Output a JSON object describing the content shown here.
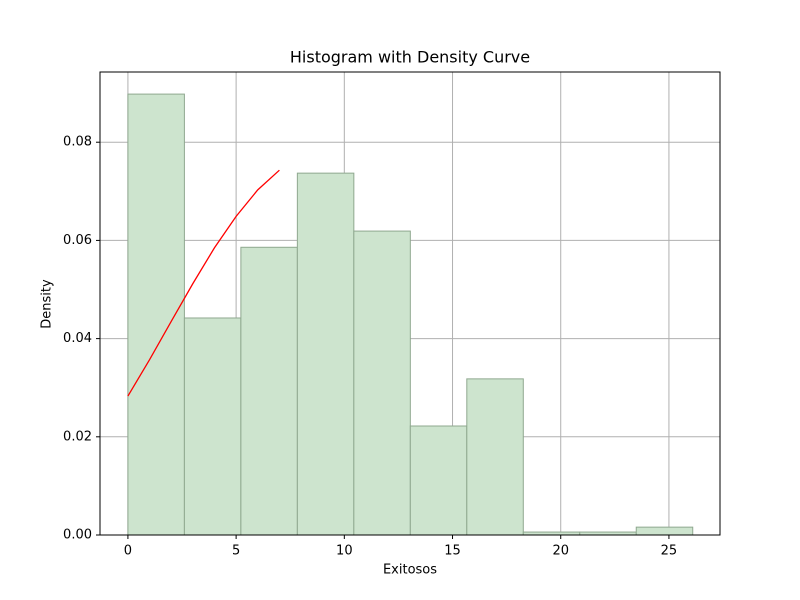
{
  "chart_data": {
    "type": "histogram",
    "title": "Histogram with Density Curve",
    "xlabel": "Exitosos",
    "ylabel": "Density",
    "bins": [
      0,
      2.61,
      5.22,
      7.83,
      10.44,
      13.05,
      15.66,
      18.27,
      20.88,
      23.49,
      26.1
    ],
    "values": [
      0.0898,
      0.0442,
      0.0586,
      0.0737,
      0.0619,
      0.0222,
      0.0318,
      0.0006,
      0.0006,
      0.0016
    ],
    "color": "#cde4ce",
    "edgecolor": "#8fa88f",
    "density_curve": {
      "x": [
        0,
        1,
        2,
        3,
        4,
        5,
        6,
        7
      ],
      "values": [
        0.0283,
        0.0357,
        0.0435,
        0.0512,
        0.0585,
        0.0649,
        0.0703,
        0.0743
      ],
      "color": "#ff0000"
    },
    "xlim": [
      -1.29,
      27.36
    ],
    "ylim": [
      0,
      0.0943
    ],
    "xticks": [
      0,
      5,
      10,
      15,
      20,
      25
    ],
    "yticks": [
      {
        "value": 0,
        "label": "0.00"
      },
      {
        "value": 0.02,
        "label": "0.02"
      },
      {
        "value": 0.04,
        "label": "0.04"
      },
      {
        "value": 0.06,
        "label": "0.06"
      },
      {
        "value": 0.08,
        "label": "0.08"
      }
    ],
    "grid": true
  }
}
